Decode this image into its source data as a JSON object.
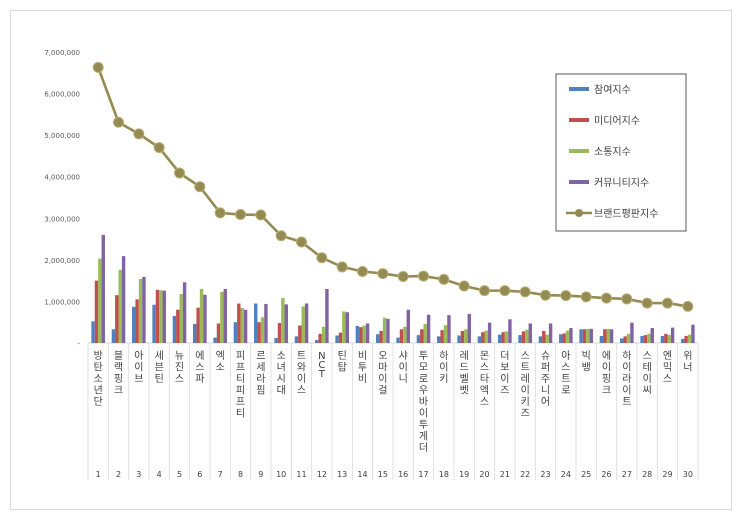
{
  "chart_data": {
    "type": "bar",
    "title": "",
    "xlabel": "",
    "ylabel": "",
    "ylim": [
      0,
      7000000
    ],
    "y_ticks": [
      "-",
      "1,000,000",
      "2,000,000",
      "3,000,000",
      "4,000,000",
      "5,000,000",
      "6,000,000",
      "7,000,000"
    ],
    "grid": false,
    "legend_position": "top-right",
    "categories": [
      "방탄소년단",
      "블랙핑크",
      "아이브",
      "세븐틴",
      "뉴진스",
      "에스파",
      "엑소",
      "피프티피프티",
      "르세라핌",
      "소녀시대",
      "트와이스",
      "NCT",
      "틴탑",
      "비투비",
      "오마이걸",
      "샤이니",
      "투모로우바이투게더",
      "하이키",
      "레드벨벳",
      "몬스타엑스",
      "더보이즈",
      "스트레이키즈",
      "슈퍼주니어",
      "아스트로",
      "빅뱅",
      "에이핑크",
      "하이라이트",
      "스테이씨",
      "엔믹스",
      "위너"
    ],
    "ranks": [
      "1",
      "2",
      "3",
      "4",
      "5",
      "6",
      "7",
      "8",
      "9",
      "10",
      "11",
      "12",
      "13",
      "14",
      "15",
      "16",
      "17",
      "18",
      "19",
      "20",
      "21",
      "22",
      "23",
      "24",
      "25",
      "26",
      "27",
      "28",
      "29",
      "30"
    ],
    "series": [
      {
        "name": "참여지수",
        "type": "bar",
        "color": "#4f81bd",
        "values": [
          520000,
          330000,
          870000,
          920000,
          650000,
          460000,
          130000,
          500000,
          950000,
          120000,
          160000,
          70000,
          180000,
          410000,
          210000,
          130000,
          190000,
          160000,
          180000,
          160000,
          200000,
          190000,
          160000,
          210000,
          330000,
          170000,
          110000,
          170000,
          170000,
          100000
        ]
      },
      {
        "name": "미디어지수",
        "type": "bar",
        "color": "#c0504d",
        "values": [
          1500000,
          1150000,
          1050000,
          1280000,
          800000,
          850000,
          470000,
          950000,
          500000,
          480000,
          420000,
          220000,
          250000,
          380000,
          290000,
          330000,
          330000,
          310000,
          290000,
          260000,
          260000,
          280000,
          290000,
          230000,
          330000,
          330000,
          160000,
          190000,
          220000,
          170000
        ]
      },
      {
        "name": "소통지수",
        "type": "bar",
        "color": "#9bbb59",
        "values": [
          2030000,
          1760000,
          1540000,
          1270000,
          1180000,
          1300000,
          1230000,
          840000,
          620000,
          1080000,
          880000,
          390000,
          760000,
          420000,
          610000,
          390000,
          460000,
          430000,
          330000,
          300000,
          280000,
          320000,
          200000,
          300000,
          340000,
          340000,
          220000,
          220000,
          190000,
          200000
        ]
      },
      {
        "name": "커뮤니티지수",
        "type": "bar",
        "color": "#8064a2",
        "values": [
          2600000,
          2090000,
          1590000,
          1260000,
          1460000,
          1160000,
          1300000,
          800000,
          940000,
          930000,
          950000,
          1300000,
          740000,
          470000,
          580000,
          800000,
          680000,
          670000,
          700000,
          490000,
          570000,
          470000,
          470000,
          360000,
          340000,
          330000,
          490000,
          360000,
          370000,
          440000
        ]
      },
      {
        "name": "브랜드평판지수",
        "type": "line",
        "color": "#948a54",
        "values": [
          6630000,
          5310000,
          5030000,
          4700000,
          4090000,
          3760000,
          3130000,
          3090000,
          3080000,
          2580000,
          2430000,
          2050000,
          1830000,
          1720000,
          1670000,
          1600000,
          1610000,
          1530000,
          1370000,
          1260000,
          1260000,
          1230000,
          1150000,
          1140000,
          1110000,
          1080000,
          1060000,
          960000,
          960000,
          880000
        ]
      }
    ]
  }
}
